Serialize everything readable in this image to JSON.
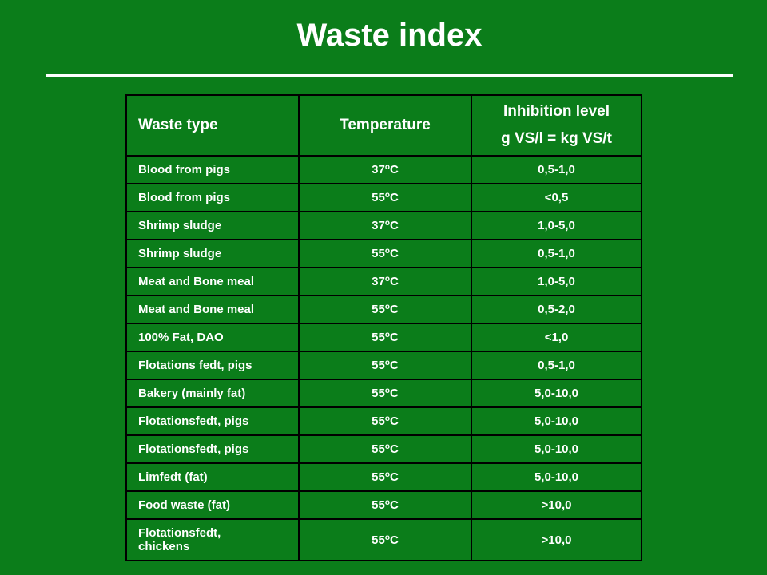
{
  "slide": {
    "title": "Waste index"
  },
  "table": {
    "headers": {
      "waste_type": "Waste type",
      "temperature": "Temperature",
      "inhibition_line1": "Inhibition level",
      "inhibition_line2": "g VS/l = kg VS/t"
    },
    "rows": [
      {
        "waste": "Blood from pigs",
        "temp_value": "37",
        "degree": "o",
        "temp_unit": "C",
        "level": "0,5-1,0"
      },
      {
        "waste": "Blood from pigs",
        "temp_value": "55",
        "degree": "o",
        "temp_unit": "C",
        "level": "<0,5"
      },
      {
        "waste": "Shrimp sludge",
        "temp_value": "37",
        "degree": "o",
        "temp_unit": "C",
        "level": "1,0-5,0"
      },
      {
        "waste": "Shrimp sludge",
        "temp_value": "55",
        "degree": "o",
        "temp_unit": "C",
        "level": "0,5-1,0"
      },
      {
        "waste": "Meat and Bone meal",
        "temp_value": "37",
        "degree": "o",
        "temp_unit": "C",
        "level": "1,0-5,0"
      },
      {
        "waste": "Meat and Bone meal",
        "temp_value": "55",
        "degree": "o",
        "temp_unit": "C",
        "level": "0,5-2,0"
      },
      {
        "waste": "100% Fat, DAO",
        "temp_value": "55",
        "degree": "o",
        "temp_unit": "C",
        "level": "<1,0"
      },
      {
        "waste": "Flotations fedt, pigs",
        "temp_value": "55",
        "degree": "o",
        "temp_unit": "C",
        "level": "0,5-1,0"
      },
      {
        "waste": "Bakery (mainly fat)",
        "temp_value": "55",
        "degree": "o",
        "temp_unit": "C",
        "level": "5,0-10,0"
      },
      {
        "waste": "Flotationsfedt, pigs",
        "temp_value": "55",
        "degree": "o",
        "temp_unit": "C",
        "level": "5,0-10,0"
      },
      {
        "waste": "Flotationsfedt, pigs",
        "temp_value": "55",
        "degree": "o",
        "temp_unit": "C",
        "level": "5,0-10,0"
      },
      {
        "waste": "Limfedt (fat)",
        "temp_value": "55",
        "degree": "o",
        "temp_unit": "C",
        "level": "5,0-10,0"
      },
      {
        "waste": "Food waste (fat)",
        "temp_value": "55",
        "degree": "o",
        "temp_unit": "C",
        "level": ">10,0"
      },
      {
        "waste": "Flotationsfedt,\nchickens",
        "temp_value": "55",
        "degree": "o",
        "temp_unit": "C",
        "level": ">10,0"
      }
    ]
  },
  "colors": {
    "background": "#0b7d1a",
    "text": "#ffffff",
    "grid": "#000000"
  }
}
